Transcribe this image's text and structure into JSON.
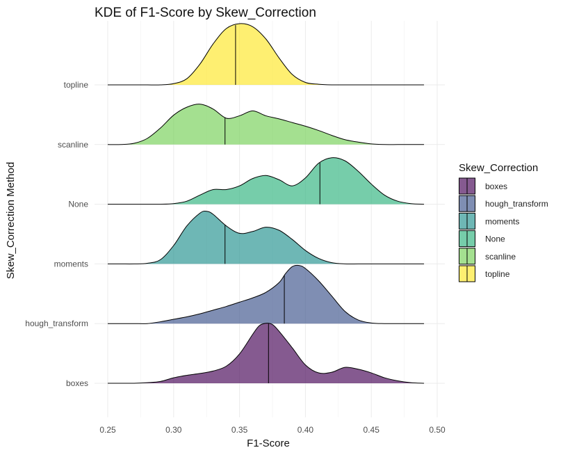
{
  "chart_data": {
    "type": "ridgeline-density",
    "title": "KDE of F1-Score by Skew_Correction",
    "xlabel": "F1-Score",
    "ylabel": "Skew_Correction Method",
    "xlim": [
      0.25,
      0.5
    ],
    "x_ticks": [
      "0.25",
      "0.30",
      "0.35",
      "0.40",
      "0.45",
      "0.50"
    ],
    "x_tick_values": [
      0.25,
      0.3,
      0.35,
      0.4,
      0.45,
      0.5
    ],
    "grid": true,
    "legend": {
      "title": "Skew_Correction",
      "position": "right"
    },
    "series": [
      {
        "name": "boxes",
        "color": "#440154",
        "median": 0.372,
        "density": [
          [
            0.25,
            0
          ],
          [
            0.26,
            0
          ],
          [
            0.27,
            0
          ],
          [
            0.28,
            0.01
          ],
          [
            0.29,
            0.03
          ],
          [
            0.3,
            0.09
          ],
          [
            0.31,
            0.13
          ],
          [
            0.32,
            0.16
          ],
          [
            0.33,
            0.2
          ],
          [
            0.34,
            0.28
          ],
          [
            0.35,
            0.48
          ],
          [
            0.36,
            0.8
          ],
          [
            0.365,
            0.94
          ],
          [
            0.37,
            0.98
          ],
          [
            0.375,
            0.96
          ],
          [
            0.38,
            0.85
          ],
          [
            0.39,
            0.58
          ],
          [
            0.4,
            0.3
          ],
          [
            0.41,
            0.17
          ],
          [
            0.42,
            0.18
          ],
          [
            0.43,
            0.26
          ],
          [
            0.44,
            0.23
          ],
          [
            0.45,
            0.17
          ],
          [
            0.46,
            0.09
          ],
          [
            0.47,
            0.04
          ],
          [
            0.48,
            0.01
          ],
          [
            0.49,
            0
          ]
        ]
      },
      {
        "name": "hough_transform",
        "color": "#3b528b",
        "median": 0.384,
        "density": [
          [
            0.25,
            0
          ],
          [
            0.26,
            0
          ],
          [
            0.27,
            0
          ],
          [
            0.28,
            0
          ],
          [
            0.29,
            0.03
          ],
          [
            0.3,
            0.07
          ],
          [
            0.31,
            0.11
          ],
          [
            0.32,
            0.16
          ],
          [
            0.33,
            0.22
          ],
          [
            0.34,
            0.28
          ],
          [
            0.35,
            0.35
          ],
          [
            0.36,
            0.42
          ],
          [
            0.37,
            0.51
          ],
          [
            0.38,
            0.67
          ],
          [
            0.385,
            0.82
          ],
          [
            0.39,
            0.93
          ],
          [
            0.395,
            0.95
          ],
          [
            0.4,
            0.9
          ],
          [
            0.41,
            0.7
          ],
          [
            0.42,
            0.45
          ],
          [
            0.43,
            0.2
          ],
          [
            0.44,
            0.06
          ],
          [
            0.45,
            0.01
          ],
          [
            0.46,
            0
          ],
          [
            0.47,
            0
          ],
          [
            0.48,
            0
          ],
          [
            0.49,
            0
          ]
        ]
      },
      {
        "name": "moments",
        "color": "#21908d",
        "median": 0.339,
        "density": [
          [
            0.25,
            0
          ],
          [
            0.26,
            0
          ],
          [
            0.27,
            0
          ],
          [
            0.28,
            0.01
          ],
          [
            0.29,
            0.07
          ],
          [
            0.3,
            0.3
          ],
          [
            0.31,
            0.62
          ],
          [
            0.32,
            0.83
          ],
          [
            0.325,
            0.86
          ],
          [
            0.33,
            0.81
          ],
          [
            0.34,
            0.62
          ],
          [
            0.35,
            0.5
          ],
          [
            0.36,
            0.53
          ],
          [
            0.37,
            0.6
          ],
          [
            0.38,
            0.55
          ],
          [
            0.39,
            0.4
          ],
          [
            0.4,
            0.22
          ],
          [
            0.41,
            0.09
          ],
          [
            0.42,
            0.02
          ],
          [
            0.43,
            0
          ],
          [
            0.44,
            0
          ],
          [
            0.45,
            0
          ],
          [
            0.46,
            0
          ],
          [
            0.47,
            0
          ],
          [
            0.48,
            0
          ],
          [
            0.49,
            0
          ]
        ]
      },
      {
        "name": "None",
        "color": "#2db27d",
        "median": 0.411,
        "density": [
          [
            0.25,
            0
          ],
          [
            0.26,
            0
          ],
          [
            0.27,
            0
          ],
          [
            0.28,
            0
          ],
          [
            0.29,
            0
          ],
          [
            0.3,
            0.01
          ],
          [
            0.31,
            0.05
          ],
          [
            0.32,
            0.15
          ],
          [
            0.33,
            0.24
          ],
          [
            0.34,
            0.24
          ],
          [
            0.35,
            0.3
          ],
          [
            0.36,
            0.42
          ],
          [
            0.37,
            0.47
          ],
          [
            0.38,
            0.4
          ],
          [
            0.39,
            0.3
          ],
          [
            0.4,
            0.43
          ],
          [
            0.41,
            0.67
          ],
          [
            0.42,
            0.76
          ],
          [
            0.43,
            0.71
          ],
          [
            0.44,
            0.54
          ],
          [
            0.45,
            0.33
          ],
          [
            0.46,
            0.15
          ],
          [
            0.47,
            0.05
          ],
          [
            0.48,
            0.01
          ],
          [
            0.49,
            0
          ]
        ]
      },
      {
        "name": "scanline",
        "color": "#73d055",
        "median": 0.339,
        "density": [
          [
            0.25,
            0
          ],
          [
            0.26,
            0
          ],
          [
            0.27,
            0.02
          ],
          [
            0.28,
            0.1
          ],
          [
            0.29,
            0.27
          ],
          [
            0.3,
            0.48
          ],
          [
            0.31,
            0.61
          ],
          [
            0.32,
            0.66
          ],
          [
            0.33,
            0.58
          ],
          [
            0.34,
            0.43
          ],
          [
            0.35,
            0.47
          ],
          [
            0.36,
            0.55
          ],
          [
            0.37,
            0.47
          ],
          [
            0.38,
            0.42
          ],
          [
            0.39,
            0.36
          ],
          [
            0.4,
            0.3
          ],
          [
            0.41,
            0.23
          ],
          [
            0.42,
            0.15
          ],
          [
            0.43,
            0.08
          ],
          [
            0.44,
            0.04
          ],
          [
            0.45,
            0.01
          ],
          [
            0.46,
            0
          ],
          [
            0.47,
            0
          ],
          [
            0.48,
            0
          ],
          [
            0.49,
            0
          ]
        ]
      },
      {
        "name": "topline",
        "color": "#fde725",
        "median": 0.347,
        "density": [
          [
            0.25,
            0
          ],
          [
            0.26,
            0
          ],
          [
            0.27,
            0
          ],
          [
            0.28,
            0
          ],
          [
            0.29,
            0
          ],
          [
            0.3,
            0.02
          ],
          [
            0.31,
            0.1
          ],
          [
            0.32,
            0.34
          ],
          [
            0.33,
            0.67
          ],
          [
            0.34,
            0.92
          ],
          [
            0.35,
            1.0
          ],
          [
            0.36,
            0.95
          ],
          [
            0.37,
            0.75
          ],
          [
            0.38,
            0.44
          ],
          [
            0.39,
            0.17
          ],
          [
            0.4,
            0.04
          ],
          [
            0.41,
            0.01
          ],
          [
            0.42,
            0
          ],
          [
            0.43,
            0
          ],
          [
            0.44,
            0
          ],
          [
            0.45,
            0
          ],
          [
            0.46,
            0
          ],
          [
            0.47,
            0
          ],
          [
            0.48,
            0
          ],
          [
            0.49,
            0
          ]
        ]
      }
    ]
  }
}
